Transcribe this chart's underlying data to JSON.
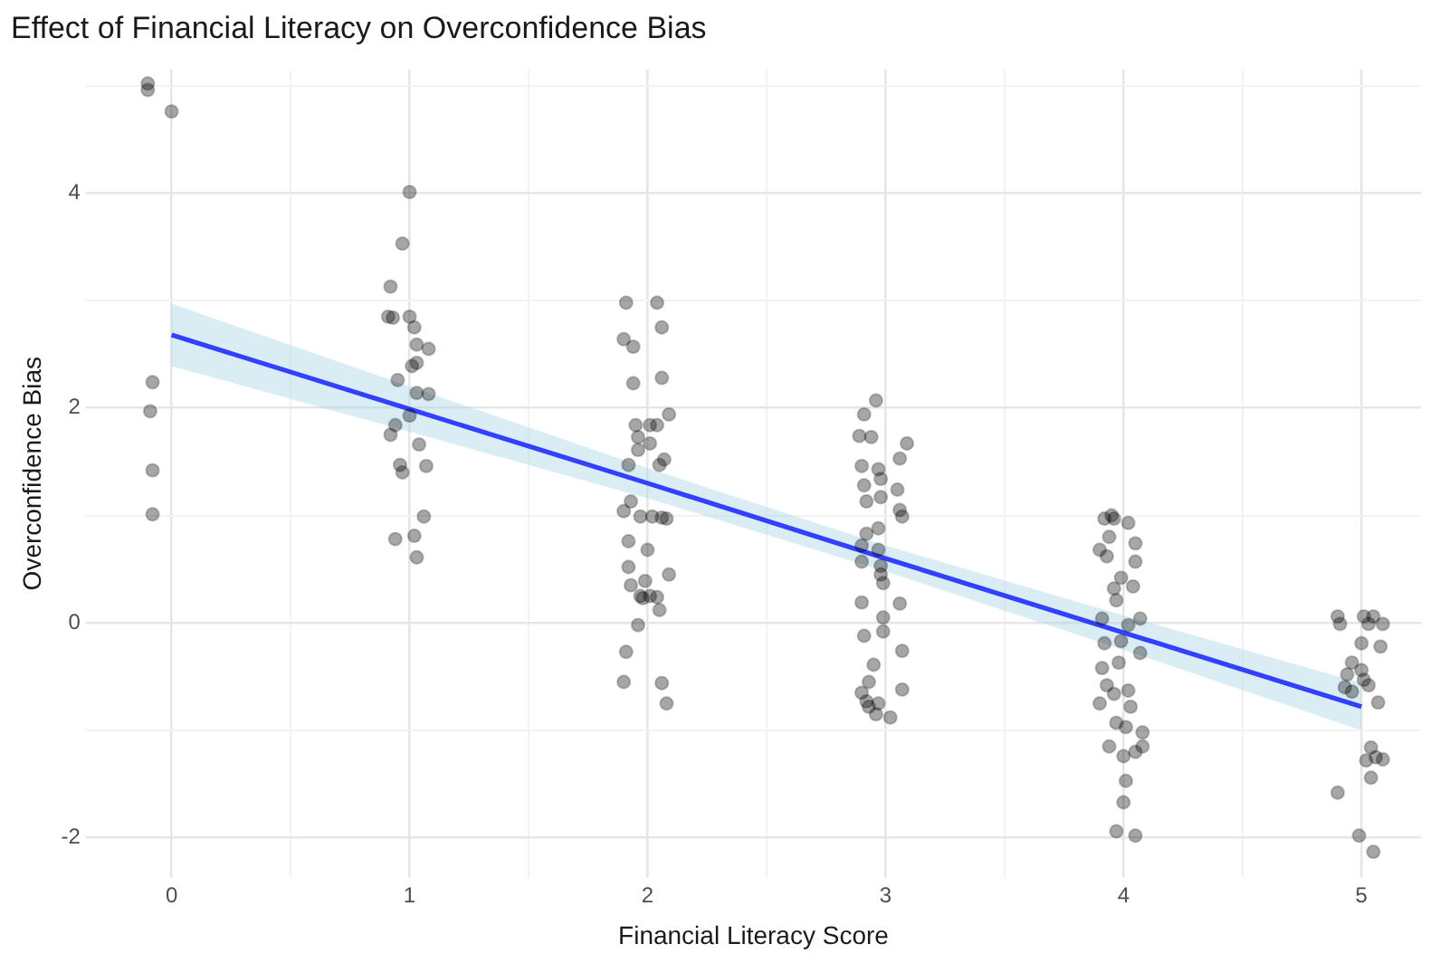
{
  "chart_data": {
    "type": "scatter",
    "title": "Effect of Financial Literacy on Overconfidence Bias",
    "xlabel": "Financial Literacy Score",
    "ylabel": "Overconfidence Bias",
    "xlim": [
      -0.36,
      5.25
    ],
    "ylim": [
      -2.37,
      5.15
    ],
    "xticks": [
      0,
      {
        "value": 0.5,
        "label": null
      },
      1,
      {
        "value": 1.5,
        "label": null
      },
      2,
      {
        "value": 2.5,
        "label": null
      },
      3,
      {
        "value": 3.5,
        "label": null
      },
      4,
      {
        "value": 4.5,
        "label": null
      },
      5
    ],
    "yticks": [
      -2,
      {
        "value": -1,
        "label": null
      },
      0,
      {
        "value": 1,
        "label": null
      },
      2,
      {
        "value": 3,
        "label": null
      },
      4,
      {
        "value": 5,
        "label": null
      }
    ],
    "grid": true,
    "legend": false,
    "series": [
      {
        "color": "#000000",
        "marker": "circle",
        "x": [
          -0.1,
          -0.1,
          0.0,
          -0.08,
          -0.09,
          -0.08,
          -0.08,
          1.0,
          0.97,
          0.92,
          0.91,
          0.93,
          1.0,
          1.02,
          1.03,
          1.08,
          1.03,
          1.01,
          0.95,
          1.03,
          1.08,
          1.0,
          0.94,
          0.92,
          1.04,
          0.96,
          0.97,
          1.07,
          1.06,
          0.94,
          1.02,
          1.03,
          1.91,
          2.04,
          2.06,
          1.9,
          1.94,
          1.94,
          2.06,
          2.09,
          1.95,
          2.01,
          2.04,
          1.96,
          2.01,
          1.96,
          2.07,
          2.05,
          1.92,
          1.93,
          1.9,
          1.97,
          2.02,
          2.06,
          2.08,
          1.92,
          2.0,
          1.92,
          2.09,
          1.99,
          1.93,
          1.97,
          1.98,
          2.01,
          2.04,
          2.05,
          1.96,
          1.91,
          1.9,
          2.06,
          2.08,
          2.96,
          2.91,
          2.89,
          2.94,
          3.09,
          3.06,
          2.9,
          2.97,
          2.98,
          2.91,
          3.05,
          2.98,
          2.92,
          3.06,
          3.07,
          2.97,
          2.92,
          2.9,
          2.97,
          2.9,
          2.98,
          2.98,
          2.99,
          2.9,
          3.06,
          2.99,
          2.99,
          2.91,
          3.07,
          2.95,
          2.93,
          2.9,
          3.07,
          2.92,
          2.93,
          2.97,
          2.96,
          3.02,
          3.92,
          3.95,
          3.96,
          4.02,
          3.94,
          4.05,
          3.9,
          3.93,
          4.05,
          3.99,
          3.96,
          4.04,
          3.97,
          3.91,
          4.07,
          4.02,
          3.92,
          3.99,
          4.07,
          3.98,
          3.91,
          3.93,
          3.96,
          4.02,
          3.9,
          4.03,
          3.97,
          4.01,
          4.08,
          3.94,
          4.0,
          4.05,
          4.08,
          4.01,
          4.0,
          3.97,
          4.05,
          4.9,
          4.91,
          5.01,
          5.05,
          5.03,
          5.09,
          5.0,
          5.08,
          4.96,
          5.0,
          4.94,
          5.01,
          4.93,
          4.96,
          5.03,
          5.07,
          5.04,
          5.02,
          5.06,
          5.09,
          5.04,
          4.9,
          4.99,
          5.05
        ],
        "values": [
          5.02,
          4.96,
          4.76,
          2.24,
          1.97,
          1.42,
          1.01,
          4.01,
          3.53,
          3.13,
          2.85,
          2.84,
          2.85,
          2.75,
          2.59,
          2.55,
          2.42,
          2.39,
          2.26,
          2.14,
          2.13,
          1.93,
          1.84,
          1.75,
          1.66,
          1.47,
          1.4,
          1.46,
          0.99,
          0.78,
          0.81,
          0.61,
          2.98,
          2.98,
          2.75,
          2.64,
          2.57,
          2.23,
          2.28,
          1.94,
          1.84,
          1.84,
          1.84,
          1.73,
          1.67,
          1.61,
          1.52,
          1.47,
          1.47,
          1.13,
          1.04,
          0.99,
          0.99,
          0.98,
          0.97,
          0.76,
          0.68,
          0.52,
          0.45,
          0.39,
          0.35,
          0.25,
          0.23,
          0.25,
          0.24,
          0.12,
          -0.02,
          -0.27,
          -0.55,
          -0.56,
          -0.75,
          2.07,
          1.94,
          1.74,
          1.73,
          1.67,
          1.53,
          1.46,
          1.43,
          1.34,
          1.28,
          1.24,
          1.17,
          1.13,
          1.05,
          0.99,
          0.88,
          0.83,
          0.72,
          0.68,
          0.57,
          0.53,
          0.45,
          0.37,
          0.19,
          0.18,
          0.05,
          -0.08,
          -0.12,
          -0.26,
          -0.39,
          -0.55,
          -0.65,
          -0.62,
          -0.73,
          -0.78,
          -0.75,
          -0.85,
          -0.88,
          0.97,
          1.0,
          0.97,
          0.93,
          0.8,
          0.74,
          0.68,
          0.62,
          0.57,
          0.42,
          0.32,
          0.34,
          0.21,
          0.04,
          0.04,
          -0.02,
          -0.19,
          -0.17,
          -0.28,
          -0.37,
          -0.42,
          -0.58,
          -0.66,
          -0.63,
          -0.75,
          -0.78,
          -0.93,
          -0.97,
          -1.02,
          -1.15,
          -1.24,
          -1.2,
          -1.15,
          -1.47,
          -1.67,
          -1.94,
          -1.98,
          0.06,
          -0.01,
          0.06,
          0.06,
          -0.01,
          -0.01,
          -0.19,
          -0.22,
          -0.37,
          -0.44,
          -0.48,
          -0.53,
          -0.6,
          -0.64,
          -0.58,
          -0.74,
          -1.16,
          -1.28,
          -1.25,
          -1.27,
          -1.44,
          -1.58,
          -1.98,
          -2.13
        ]
      },
      {
        "type": "line",
        "color": "#3340ff",
        "marker": "none",
        "x": [
          0,
          1,
          2,
          3,
          4,
          5
        ],
        "values": [
          2.68,
          1.99,
          1.3,
          0.6,
          -0.09,
          -0.78
        ],
        "lower": [
          2.39,
          1.78,
          1.16,
          0.48,
          -0.25,
          -1.0
        ],
        "upper": [
          2.97,
          2.2,
          1.44,
          0.72,
          0.07,
          -0.56
        ]
      }
    ]
  }
}
